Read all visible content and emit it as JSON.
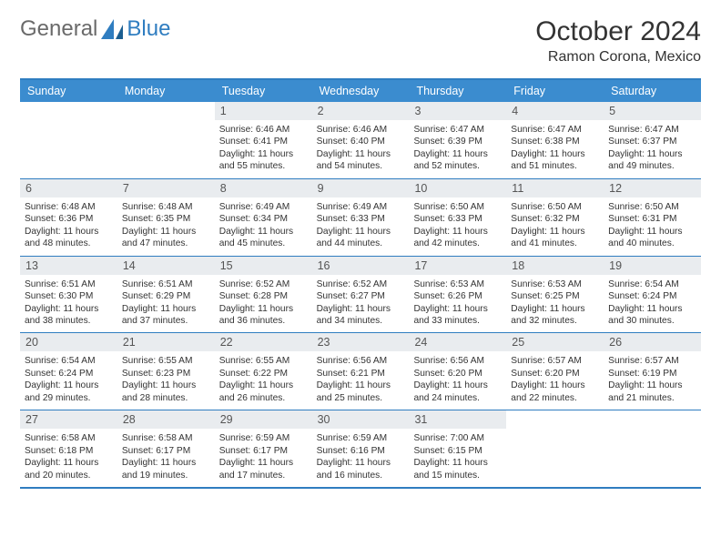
{
  "logo": {
    "word1": "General",
    "word2": "Blue"
  },
  "title": "October 2024",
  "location": "Ramon Corona, Mexico",
  "colors": {
    "brand": "#3b8ccf",
    "line": "#2f7dc0",
    "numBg": "#e9ecef"
  },
  "dayNames": [
    "Sunday",
    "Monday",
    "Tuesday",
    "Wednesday",
    "Thursday",
    "Friday",
    "Saturday"
  ],
  "weeks": [
    [
      {
        "n": "",
        "empty": true
      },
      {
        "n": "",
        "empty": true
      },
      {
        "n": "1",
        "sr": "6:46 AM",
        "ss": "6:41 PM",
        "dl": "11 hours and 55 minutes."
      },
      {
        "n": "2",
        "sr": "6:46 AM",
        "ss": "6:40 PM",
        "dl": "11 hours and 54 minutes."
      },
      {
        "n": "3",
        "sr": "6:47 AM",
        "ss": "6:39 PM",
        "dl": "11 hours and 52 minutes."
      },
      {
        "n": "4",
        "sr": "6:47 AM",
        "ss": "6:38 PM",
        "dl": "11 hours and 51 minutes."
      },
      {
        "n": "5",
        "sr": "6:47 AM",
        "ss": "6:37 PM",
        "dl": "11 hours and 49 minutes."
      }
    ],
    [
      {
        "n": "6",
        "sr": "6:48 AM",
        "ss": "6:36 PM",
        "dl": "11 hours and 48 minutes."
      },
      {
        "n": "7",
        "sr": "6:48 AM",
        "ss": "6:35 PM",
        "dl": "11 hours and 47 minutes."
      },
      {
        "n": "8",
        "sr": "6:49 AM",
        "ss": "6:34 PM",
        "dl": "11 hours and 45 minutes."
      },
      {
        "n": "9",
        "sr": "6:49 AM",
        "ss": "6:33 PM",
        "dl": "11 hours and 44 minutes."
      },
      {
        "n": "10",
        "sr": "6:50 AM",
        "ss": "6:33 PM",
        "dl": "11 hours and 42 minutes."
      },
      {
        "n": "11",
        "sr": "6:50 AM",
        "ss": "6:32 PM",
        "dl": "11 hours and 41 minutes."
      },
      {
        "n": "12",
        "sr": "6:50 AM",
        "ss": "6:31 PM",
        "dl": "11 hours and 40 minutes."
      }
    ],
    [
      {
        "n": "13",
        "sr": "6:51 AM",
        "ss": "6:30 PM",
        "dl": "11 hours and 38 minutes."
      },
      {
        "n": "14",
        "sr": "6:51 AM",
        "ss": "6:29 PM",
        "dl": "11 hours and 37 minutes."
      },
      {
        "n": "15",
        "sr": "6:52 AM",
        "ss": "6:28 PM",
        "dl": "11 hours and 36 minutes."
      },
      {
        "n": "16",
        "sr": "6:52 AM",
        "ss": "6:27 PM",
        "dl": "11 hours and 34 minutes."
      },
      {
        "n": "17",
        "sr": "6:53 AM",
        "ss": "6:26 PM",
        "dl": "11 hours and 33 minutes."
      },
      {
        "n": "18",
        "sr": "6:53 AM",
        "ss": "6:25 PM",
        "dl": "11 hours and 32 minutes."
      },
      {
        "n": "19",
        "sr": "6:54 AM",
        "ss": "6:24 PM",
        "dl": "11 hours and 30 minutes."
      }
    ],
    [
      {
        "n": "20",
        "sr": "6:54 AM",
        "ss": "6:24 PM",
        "dl": "11 hours and 29 minutes."
      },
      {
        "n": "21",
        "sr": "6:55 AM",
        "ss": "6:23 PM",
        "dl": "11 hours and 28 minutes."
      },
      {
        "n": "22",
        "sr": "6:55 AM",
        "ss": "6:22 PM",
        "dl": "11 hours and 26 minutes."
      },
      {
        "n": "23",
        "sr": "6:56 AM",
        "ss": "6:21 PM",
        "dl": "11 hours and 25 minutes."
      },
      {
        "n": "24",
        "sr": "6:56 AM",
        "ss": "6:20 PM",
        "dl": "11 hours and 24 minutes."
      },
      {
        "n": "25",
        "sr": "6:57 AM",
        "ss": "6:20 PM",
        "dl": "11 hours and 22 minutes."
      },
      {
        "n": "26",
        "sr": "6:57 AM",
        "ss": "6:19 PM",
        "dl": "11 hours and 21 minutes."
      }
    ],
    [
      {
        "n": "27",
        "sr": "6:58 AM",
        "ss": "6:18 PM",
        "dl": "11 hours and 20 minutes."
      },
      {
        "n": "28",
        "sr": "6:58 AM",
        "ss": "6:17 PM",
        "dl": "11 hours and 19 minutes."
      },
      {
        "n": "29",
        "sr": "6:59 AM",
        "ss": "6:17 PM",
        "dl": "11 hours and 17 minutes."
      },
      {
        "n": "30",
        "sr": "6:59 AM",
        "ss": "6:16 PM",
        "dl": "11 hours and 16 minutes."
      },
      {
        "n": "31",
        "sr": "7:00 AM",
        "ss": "6:15 PM",
        "dl": "11 hours and 15 minutes."
      },
      {
        "n": "",
        "empty": true
      },
      {
        "n": "",
        "empty": true
      }
    ]
  ],
  "labels": {
    "sunrise": "Sunrise:",
    "sunset": "Sunset:",
    "daylight": "Daylight:"
  }
}
